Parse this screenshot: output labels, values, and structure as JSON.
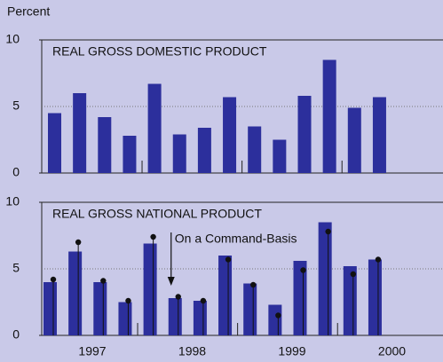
{
  "y_label": "Percent",
  "x_labels": [
    "1997",
    "1998",
    "1999",
    "2000"
  ],
  "chart_data": [
    {
      "type": "bar",
      "title": "REAL GROSS DOMESTIC PRODUCT",
      "categories": [
        null,
        null,
        null,
        null,
        null,
        null,
        null,
        null,
        null,
        null,
        null,
        null,
        null,
        null
      ],
      "series": [
        {
          "color": "#2c2f9c",
          "values": [
            4.5,
            6.0,
            4.2,
            2.8,
            6.7,
            2.9,
            3.4,
            5.7,
            3.5,
            2.5,
            5.8,
            8.5,
            4.9,
            5.7
          ]
        }
      ],
      "ylim": [
        0,
        10
      ],
      "yticks": [
        0,
        5,
        10
      ],
      "grid": true
    },
    {
      "type": "bar",
      "title": "REAL GROSS NATIONAL PRODUCT",
      "annotation": "On a Command-Basis",
      "categories": [
        null,
        null,
        null,
        null,
        null,
        null,
        null,
        null,
        null,
        null,
        null,
        null,
        null,
        null
      ],
      "series": [
        {
          "color": "#2c2f9c",
          "values": [
            4.0,
            6.3,
            4.0,
            2.5,
            6.9,
            2.8,
            2.6,
            6.0,
            3.9,
            2.3,
            5.6,
            8.5,
            5.2,
            5.7
          ]
        },
        {
          "name": "On a Command-Basis",
          "color": "#111111",
          "style": "dot",
          "values": [
            4.2,
            7.0,
            4.1,
            2.6,
            7.4,
            2.9,
            2.6,
            5.7,
            3.8,
            1.5,
            4.9,
            7.8,
            4.6,
            5.7
          ]
        }
      ],
      "ylim": [
        0,
        10
      ],
      "yticks": [
        0,
        5,
        10
      ],
      "grid": true
    }
  ]
}
